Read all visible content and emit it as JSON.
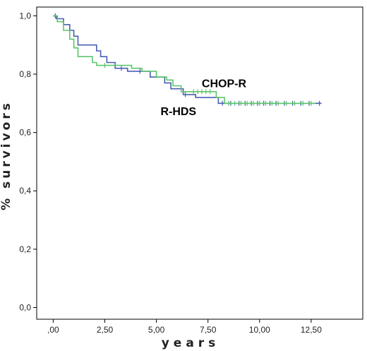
{
  "chart_data": {
    "type": "line",
    "title": "",
    "xlabel": "years",
    "ylabel": "% survivors",
    "xlim": [
      -0.8,
      15.0
    ],
    "ylim": [
      -0.04,
      1.03
    ],
    "x_ticks": [
      ",00",
      "2,50",
      "5,00",
      "7,50",
      "10,00",
      "12,50"
    ],
    "x_tick_values": [
      0,
      2.5,
      5,
      7.5,
      10,
      12.5
    ],
    "y_ticks": [
      "0,0",
      "0,2",
      "0,4",
      "0,6",
      "0,8",
      "1,0"
    ],
    "y_tick_values": [
      0,
      0.2,
      0.4,
      0.6,
      0.8,
      1.0
    ],
    "grid": false,
    "legend": "none",
    "series": [
      {
        "name": "R-HDS",
        "color": "#4a5fb0",
        "step_points": [
          [
            0,
            1.0
          ],
          [
            0.15,
            0.99
          ],
          [
            0.5,
            0.97
          ],
          [
            0.8,
            0.95
          ],
          [
            1.0,
            0.93
          ],
          [
            1.2,
            0.9
          ],
          [
            2.1,
            0.88
          ],
          [
            2.3,
            0.86
          ],
          [
            2.6,
            0.84
          ],
          [
            3.0,
            0.82
          ],
          [
            3.6,
            0.81
          ],
          [
            4.7,
            0.79
          ],
          [
            5.4,
            0.77
          ],
          [
            5.7,
            0.75
          ],
          [
            6.3,
            0.73
          ],
          [
            6.9,
            0.72
          ],
          [
            8.0,
            0.7
          ],
          [
            13.0,
            0.7
          ]
        ],
        "censor_times": [
          0.1,
          3.3,
          4.2,
          6.4,
          8.2,
          8.6,
          9.0,
          9.3,
          9.6,
          9.9,
          10.2,
          10.5,
          10.8,
          11.2,
          11.6,
          12.0,
          12.4,
          12.9
        ]
      },
      {
        "name": "CHOP-R",
        "color": "#5cc66a",
        "step_points": [
          [
            0,
            1.0
          ],
          [
            0.2,
            0.98
          ],
          [
            0.5,
            0.95
          ],
          [
            0.8,
            0.92
          ],
          [
            1.0,
            0.89
          ],
          [
            1.2,
            0.86
          ],
          [
            1.9,
            0.84
          ],
          [
            2.1,
            0.83
          ],
          [
            3.8,
            0.82
          ],
          [
            4.3,
            0.81
          ],
          [
            5.0,
            0.79
          ],
          [
            5.5,
            0.78
          ],
          [
            5.8,
            0.76
          ],
          [
            6.2,
            0.74
          ],
          [
            7.9,
            0.72
          ],
          [
            8.3,
            0.7
          ],
          [
            12.7,
            0.7
          ]
        ],
        "censor_times": [
          2.5,
          6.8,
          7.0,
          7.2,
          7.4,
          7.6,
          8.5,
          8.8,
          9.1,
          9.4,
          9.7,
          10.0,
          10.3,
          10.6,
          10.9,
          11.3,
          11.7,
          12.1,
          12.5
        ]
      }
    ],
    "annotations": [
      {
        "text": "CHOP-R",
        "x": 7.2,
        "y": 0.755
      },
      {
        "text": "R-HDS",
        "x": 5.2,
        "y": 0.66
      }
    ]
  }
}
